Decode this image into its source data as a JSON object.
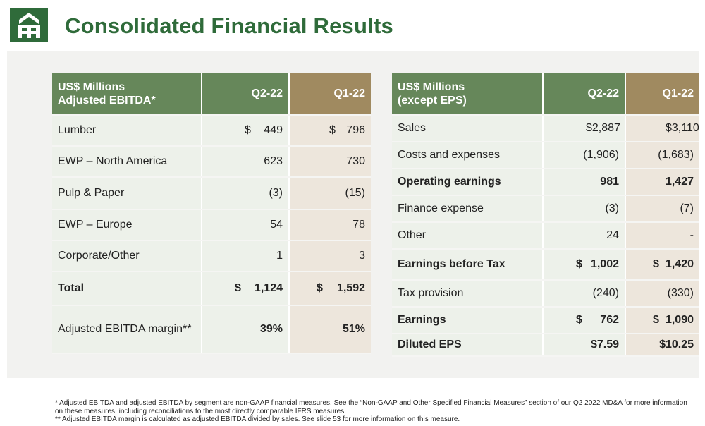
{
  "title": "Consolidated Financial Results",
  "colors": {
    "title_green": "#2f6b3a",
    "header_green": "#66875a",
    "header_gold": "#a08a60",
    "cell_green": "#edf1ea",
    "cell_tan": "#ede6dc"
  },
  "left": {
    "hdr1": "US$ Millions",
    "hdr2": "Adjusted EBITDA*",
    "col_q2": "Q2-22",
    "col_q1": "Q1-22",
    "rows": [
      {
        "label": "Lumber",
        "q2_cur": "$",
        "q2": "449",
        "q1_cur": "$",
        "q1": "796"
      },
      {
        "label": "EWP – North America",
        "q2_cur": "",
        "q2": "623",
        "q1_cur": "",
        "q1": "730"
      },
      {
        "label": "Pulp & Paper",
        "q2_cur": "",
        "q2": "(3)",
        "q1_cur": "",
        "q1": "(15)"
      },
      {
        "label": "EWP – Europe",
        "q2_cur": "",
        "q2": "54",
        "q1_cur": "",
        "q1": "78"
      },
      {
        "label": "Corporate/Other",
        "q2_cur": "",
        "q2": "1",
        "q1_cur": "",
        "q1": "3"
      },
      {
        "label": "Total",
        "q2_cur": "$",
        "q2": "1,124",
        "q1_cur": "$",
        "q1": "1,592"
      },
      {
        "label": "Adjusted EBITDA margin**",
        "q2_cur": "",
        "q2": "39%",
        "q1_cur": "",
        "q1": "51%"
      }
    ]
  },
  "right": {
    "hdr1": "US$ Millions",
    "hdr2": "(except EPS)",
    "col_q2": "Q2-22",
    "col_q1": "Q1-22",
    "rows": [
      {
        "label": "Sales",
        "q2_cur": "$",
        "q2": "2,887",
        "q1_cur": "$",
        "q1": "3,110"
      },
      {
        "label": "Costs and expenses",
        "q2_cur": "",
        "q2": "(1,906)",
        "q1_cur": "",
        "q1": "(1,683)"
      },
      {
        "label": "Operating earnings",
        "q2_cur": "",
        "q2": "981",
        "q1_cur": "",
        "q1": "1,427"
      },
      {
        "label": "Finance expense",
        "q2_cur": "",
        "q2": "(3)",
        "q1_cur": "",
        "q1": "(7)"
      },
      {
        "label": "Other",
        "q2_cur": "",
        "q2": "24",
        "q1_cur": "",
        "q1": "-"
      },
      {
        "label": "Earnings before Tax",
        "q2_cur": "$",
        "q2": "1,002",
        "q1_cur": "$",
        "q1": "1,420"
      },
      {
        "label": "Tax provision",
        "q2_cur": "",
        "q2": "(240)",
        "q1_cur": "",
        "q1": "(330)"
      },
      {
        "label": "Earnings",
        "q2_cur": "$",
        "q2": "762",
        "q1_cur": "$",
        "q1": "1,090"
      },
      {
        "label": "Diluted EPS",
        "q2_cur": "",
        "q2": "$7.59",
        "q1_cur": "",
        "q1": "$10.25"
      }
    ]
  },
  "footnotes": [
    "* Adjusted EBITDA and adjusted EBITDA by segment are non-GAAP financial measures. See the “Non-GAAP and Other Specified  Financial Measures” section of our Q2 2022 MD&A for more information on these measures, including reconciliations to the most directly comparable IFRS measures.",
    "** Adjusted EBITDA margin is calculated as adjusted EBITDA divided by sales. See slide 53 for more information on this measure."
  ]
}
